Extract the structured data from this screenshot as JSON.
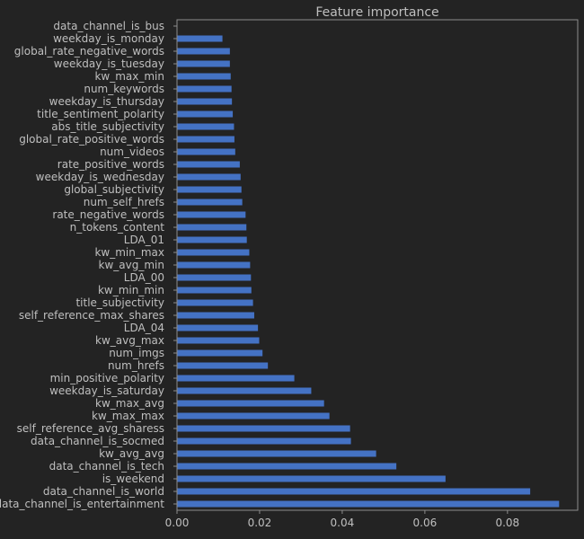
{
  "chart_data": {
    "type": "bar",
    "orientation": "horizontal",
    "title": "Feature importance",
    "xlabel": "",
    "ylabel": "",
    "xlim": [
      0,
      0.097
    ],
    "x_ticks": [
      0,
      0.02,
      0.04,
      0.06,
      0.08
    ],
    "x_tick_labels": [
      "0.00",
      "0.02",
      "0.04",
      "0.06",
      "0.08"
    ],
    "grid": false,
    "colors": {
      "bar": "#4472c4",
      "background": "#232323",
      "axes": "#8c8c8c",
      "text": "#bfbfbf"
    },
    "categories": [
      "data_channel_is_bus",
      "weekday_is_monday",
      "global_rate_negative_words",
      "weekday_is_tuesday",
      "kw_max_min",
      "num_keywords",
      "weekday_is_thursday",
      "title_sentiment_polarity",
      "abs_title_subjectivity",
      "global_rate_positive_words",
      "num_videos",
      "rate_positive_words",
      "weekday_is_wednesday",
      "global_subjectivity",
      "num_self_hrefs",
      "rate_negative_words",
      "n_tokens_content",
      "LDA_01",
      "kw_min_max",
      "kw_avg_min",
      "LDA_00",
      "kw_min_min",
      "title_subjectivity",
      "self_reference_max_shares",
      "LDA_04",
      "kw_avg_max",
      "num_imgs",
      "num_hrefs",
      "min_positive_polarity",
      "weekday_is_saturday",
      "kw_max_avg",
      "kw_max_max",
      "self_reference_avg_sharess",
      "data_channel_is_socmed",
      "kw_avg_avg",
      "data_channel_is_tech",
      "is_weekend",
      "data_channel_is_world",
      "data_channel_is_entertainment"
    ],
    "values": [
      0.0,
      0.011,
      0.0128,
      0.0128,
      0.013,
      0.0132,
      0.0133,
      0.0135,
      0.0138,
      0.0139,
      0.0141,
      0.0152,
      0.0154,
      0.0156,
      0.0158,
      0.0166,
      0.0168,
      0.0169,
      0.0175,
      0.0177,
      0.0179,
      0.018,
      0.0184,
      0.0187,
      0.0196,
      0.0199,
      0.0207,
      0.022,
      0.0284,
      0.0325,
      0.0356,
      0.0369,
      0.0419,
      0.0421,
      0.0482,
      0.0531,
      0.065,
      0.0855,
      0.0925
    ]
  }
}
